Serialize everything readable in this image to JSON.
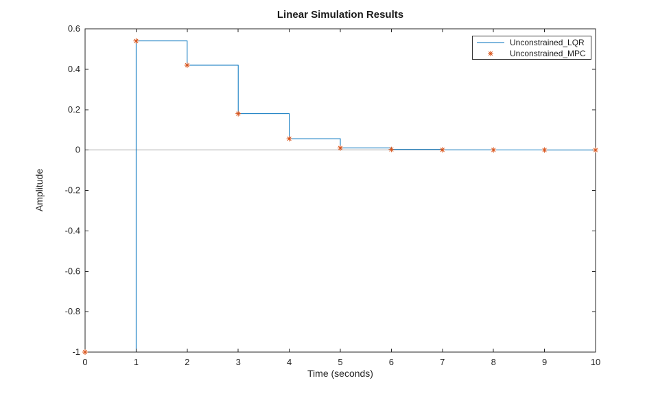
{
  "chart_data": {
    "type": "line",
    "title": "Linear Simulation Results",
    "xlabel": "Time (seconds)",
    "ylabel": "Amplitude",
    "xlim": [
      0,
      10
    ],
    "ylim": [
      -1,
      0.6
    ],
    "x_ticks": [
      0,
      1,
      2,
      3,
      4,
      5,
      6,
      7,
      8,
      9,
      10
    ],
    "y_ticks": [
      -1,
      -0.8,
      -0.6,
      -0.4,
      -0.2,
      0,
      0.2,
      0.4,
      0.6
    ],
    "grid": false,
    "zero_line_y": 0,
    "legend_position": "northeast",
    "x": [
      0,
      1,
      2,
      3,
      4,
      5,
      6,
      7,
      8,
      9,
      10
    ],
    "series": [
      {
        "name": "Unconstrained_LQR",
        "type": "stairs",
        "marker": "none",
        "color": "#0072BD",
        "values": [
          -1,
          0.54,
          0.42,
          0.18,
          0.056,
          0.01,
          0.003,
          0.001,
          0.0005,
          0.0002,
          0
        ]
      },
      {
        "name": "Unconstrained_MPC",
        "type": "scatter",
        "marker": "asterisk",
        "color": "#D95319",
        "values": [
          -1,
          0.54,
          0.42,
          0.18,
          0.056,
          0.01,
          0.003,
          0.001,
          0.0005,
          0.0002,
          0
        ]
      }
    ]
  },
  "style": {
    "background": "#ffffff",
    "axis_color": "#262626",
    "tick_label_color": "#262626",
    "title_color": "#1a1a1a",
    "zero_line_color": "#9e9e9e",
    "legend_border_color": "#333333",
    "legend_text_color": "#1a1a1a"
  }
}
